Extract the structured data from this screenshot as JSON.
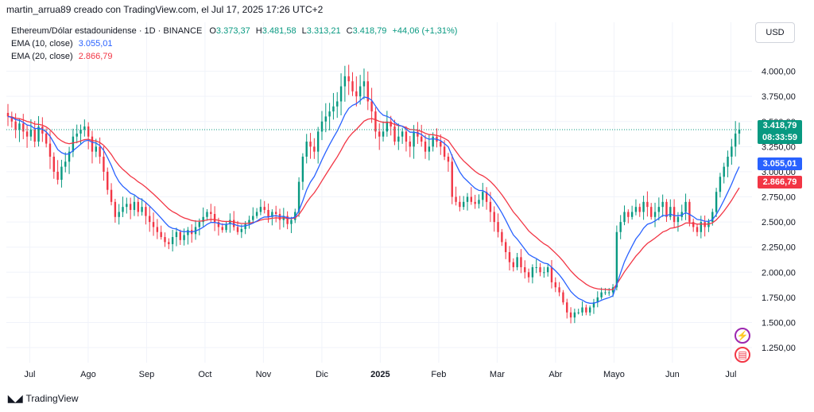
{
  "header": {
    "attribution": "martin_arrua89 creado con TradingView.com, el Jul 17, 2025 17:26 UTC+2"
  },
  "legend": {
    "symbol": "Ethereum/Dólar estadounidense · 1D · BINANCE",
    "o_label": "O",
    "o_value": "3.373,37",
    "h_label": "H",
    "h_value": "3.481,58",
    "l_label": "L",
    "l_value": "3.313,21",
    "c_label": "C",
    "c_value": "3.418,79",
    "change": "+44,06 (+1,31%)",
    "ema10_label": "EMA (10, close)",
    "ema10_value": "3.055,01",
    "ema20_label": "EMA (20, close)",
    "ema20_value": "2.866,79"
  },
  "currency_button": "USD",
  "price_tag": {
    "price": "3.418,79",
    "countdown": "08:33:59"
  },
  "ema10_tag": "3.055,01",
  "ema20_tag": "2.866,79",
  "footer": {
    "brand": "TradingView"
  },
  "colors": {
    "up": "#089981",
    "down": "#f23645",
    "ema10": "#2962ff",
    "ema20": "#f23645",
    "grid": "#f0f3fa"
  },
  "chart_data": {
    "type": "candlestick",
    "title": "Ethereum/Dólar estadounidense · 1D · BINANCE",
    "ylim": [
      1100,
      4250
    ],
    "y_ticks": [
      {
        "value": 4000,
        "label": "4.000,00"
      },
      {
        "value": 3750,
        "label": "3.750,00"
      },
      {
        "value": 3500,
        "label": "3.500,00"
      },
      {
        "value": 3250,
        "label": "3.250,00"
      },
      {
        "value": 3000,
        "label": "3.000,00"
      },
      {
        "value": 2750,
        "label": "2.750,00"
      },
      {
        "value": 2500,
        "label": "2.500,00"
      },
      {
        "value": 2250,
        "label": "2.250,00"
      },
      {
        "value": 2000,
        "label": "2.000,00"
      },
      {
        "value": 1750,
        "label": "1.750,00"
      },
      {
        "value": 1500,
        "label": "1.500,00"
      },
      {
        "value": 1250,
        "label": "1.250,00"
      }
    ],
    "x_ticks": [
      {
        "month_index": 0.4,
        "label": "Jul",
        "bold": false
      },
      {
        "month_index": 1.4,
        "label": "Ago",
        "bold": false
      },
      {
        "month_index": 2.4,
        "label": "Sep",
        "bold": false
      },
      {
        "month_index": 3.4,
        "label": "Oct",
        "bold": false
      },
      {
        "month_index": 4.4,
        "label": "Nov",
        "bold": false
      },
      {
        "month_index": 5.4,
        "label": "Dic",
        "bold": false
      },
      {
        "month_index": 6.4,
        "label": "2025",
        "bold": true
      },
      {
        "month_index": 7.4,
        "label": "Feb",
        "bold": false
      },
      {
        "month_index": 8.4,
        "label": "Mar",
        "bold": false
      },
      {
        "month_index": 9.4,
        "label": "Abr",
        "bold": false
      },
      {
        "month_index": 10.4,
        "label": "Mayo",
        "bold": false
      },
      {
        "month_index": 11.4,
        "label": "Jun",
        "bold": false
      },
      {
        "month_index": 12.4,
        "label": "Jul",
        "bold": false
      }
    ],
    "last_close": 3418.79,
    "close_series": [
      3550,
      3500,
      3420,
      3480,
      3400,
      3350,
      3420,
      3300,
      3450,
      3380,
      3280,
      3150,
      3000,
      2920,
      3050,
      3100,
      3200,
      3350,
      3380,
      3420,
      3450,
      3350,
      3200,
      3250,
      3150,
      3000,
      2820,
      2700,
      2550,
      2600,
      2650,
      2680,
      2620,
      2700,
      2600,
      2650,
      2560,
      2500,
      2450,
      2400,
      2350,
      2300,
      2280,
      2350,
      2400,
      2320,
      2370,
      2420,
      2380,
      2450,
      2500,
      2550,
      2600,
      2580,
      2500,
      2450,
      2420,
      2480,
      2520,
      2450,
      2400,
      2430,
      2480,
      2520,
      2560,
      2600,
      2650,
      2620,
      2550,
      2600,
      2580,
      2520,
      2560,
      2480,
      2520,
      2600,
      2900,
      3150,
      3300,
      3250,
      3200,
      3400,
      3500,
      3550,
      3600,
      3650,
      3700,
      3850,
      3950,
      3900,
      3800,
      3750,
      3850,
      3900,
      3700,
      3600,
      3400,
      3350,
      3400,
      3500,
      3450,
      3300,
      3350,
      3400,
      3300,
      3250,
      3400,
      3350,
      3300,
      3200,
      3250,
      3350,
      3300,
      3250,
      3150,
      3100,
      2750,
      2700,
      2650,
      2700,
      2750,
      2700,
      2680,
      2720,
      2800,
      2700,
      2600,
      2500,
      2400,
      2300,
      2200,
      2100,
      2050,
      2150,
      2050,
      2000,
      1950,
      2050,
      2050,
      2000,
      2000,
      2050,
      1900,
      1850,
      1800,
      1700,
      1600,
      1550,
      1600,
      1600,
      1650,
      1600,
      1650,
      1700,
      1750,
      1800,
      1800,
      1800,
      1850,
      2400,
      2500,
      2600,
      2550,
      2600,
      2650,
      2600,
      2700,
      2650,
      2550,
      2600,
      2650,
      2700,
      2550,
      2650,
      2500,
      2550,
      2600,
      2700,
      2500,
      2450,
      2400,
      2500,
      2450,
      2500,
      2600,
      2800,
      2950,
      3050,
      3150,
      3250,
      3380,
      3418.79
    ],
    "ema10_series_note": "computed",
    "ema10_last": 3055.01,
    "ema20_last": 2866.79
  }
}
